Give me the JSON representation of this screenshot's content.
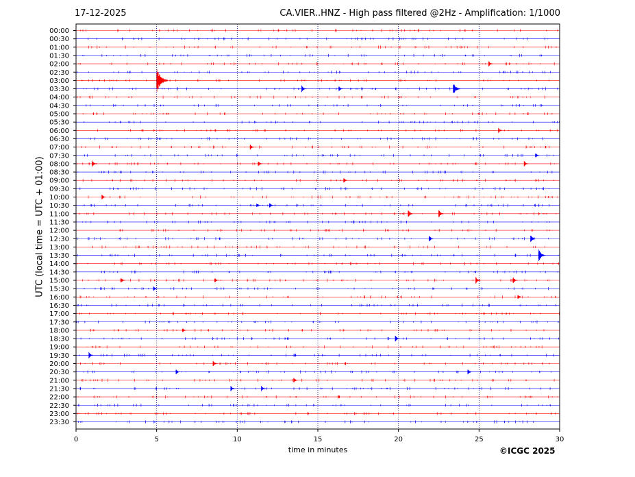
{
  "header": {
    "date": "17-12-2025",
    "title": "CA.VIER..HNZ - High pass filtered @2Hz - Amplification: 1/1000"
  },
  "footer": {
    "copyright": "©ICGC 2025"
  },
  "chart_data": {
    "type": "line",
    "title": "CA.VIER..HNZ - High pass filtered @2Hz - Amplification: 1/1000",
    "xlabel": "time in minutes",
    "ylabel": "UTC (local time = UTC + 01:00)",
    "xlim": [
      0,
      30
    ],
    "xticks": [
      0,
      5,
      10,
      15,
      20,
      25,
      30
    ],
    "grid": "vertical dotted at 5, 10, 15, 20, 25",
    "colors": {
      "even_rows": "#ff0000",
      "odd_rows": "#0000ff",
      "grid": "#000080"
    },
    "rows": [
      "00:00",
      "00:30",
      "01:00",
      "01:30",
      "02:00",
      "02:30",
      "03:00",
      "03:30",
      "04:00",
      "04:30",
      "05:00",
      "05:30",
      "06:00",
      "06:30",
      "07:00",
      "07:30",
      "08:00",
      "08:30",
      "09:00",
      "09:30",
      "10:00",
      "10:30",
      "11:00",
      "11:30",
      "12:00",
      "12:30",
      "13:00",
      "13:30",
      "14:00",
      "14:30",
      "15:00",
      "15:30",
      "16:00",
      "16:30",
      "17:00",
      "17:30",
      "18:00",
      "18:30",
      "19:00",
      "19:30",
      "20:00",
      "20:30",
      "21:00",
      "21:30",
      "22:00",
      "22:30",
      "23:00",
      "23:30"
    ],
    "events": [
      {
        "row": "02:00",
        "minute": 25.6,
        "amplitude": 0.2
      },
      {
        "row": "03:00",
        "minute": 5.0,
        "amplitude": 1.0
      },
      {
        "row": "03:30",
        "minute": 14.0,
        "amplitude": 0.25
      },
      {
        "row": "03:30",
        "minute": 16.3,
        "amplitude": 0.2
      },
      {
        "row": "03:30",
        "minute": 23.4,
        "amplitude": 0.5
      },
      {
        "row": "06:00",
        "minute": 26.2,
        "amplitude": 0.2
      },
      {
        "row": "07:00",
        "minute": 10.8,
        "amplitude": 0.2
      },
      {
        "row": "07:30",
        "minute": 28.5,
        "amplitude": 0.2
      },
      {
        "row": "08:00",
        "minute": 1.0,
        "amplitude": 0.25
      },
      {
        "row": "08:00",
        "minute": 11.3,
        "amplitude": 0.2
      },
      {
        "row": "08:00",
        "minute": 27.8,
        "amplitude": 0.2
      },
      {
        "row": "09:00",
        "minute": 16.6,
        "amplitude": 0.2
      },
      {
        "row": "10:00",
        "minute": 1.6,
        "amplitude": 0.2
      },
      {
        "row": "10:30",
        "minute": 11.2,
        "amplitude": 0.2
      },
      {
        "row": "10:30",
        "minute": 12.0,
        "amplitude": 0.2
      },
      {
        "row": "11:00",
        "minute": 20.6,
        "amplitude": 0.3
      },
      {
        "row": "11:00",
        "minute": 22.5,
        "amplitude": 0.3
      },
      {
        "row": "12:30",
        "minute": 21.9,
        "amplitude": 0.25
      },
      {
        "row": "12:30",
        "minute": 28.2,
        "amplitude": 0.3
      },
      {
        "row": "13:30",
        "minute": 28.7,
        "amplitude": 0.5
      },
      {
        "row": "15:00",
        "minute": 2.8,
        "amplitude": 0.2
      },
      {
        "row": "15:00",
        "minute": 8.6,
        "amplitude": 0.2
      },
      {
        "row": "15:00",
        "minute": 24.8,
        "amplitude": 0.25
      },
      {
        "row": "15:00",
        "minute": 27.1,
        "amplitude": 0.25
      },
      {
        "row": "15:30",
        "minute": 4.8,
        "amplitude": 0.2
      },
      {
        "row": "16:00",
        "minute": 27.4,
        "amplitude": 0.2
      },
      {
        "row": "18:00",
        "minute": 6.6,
        "amplitude": 0.2
      },
      {
        "row": "18:30",
        "minute": 19.8,
        "amplitude": 0.25
      },
      {
        "row": "19:30",
        "minute": 0.8,
        "amplitude": 0.25
      },
      {
        "row": "20:00",
        "minute": 8.5,
        "amplitude": 0.2
      },
      {
        "row": "20:30",
        "minute": 6.2,
        "amplitude": 0.2
      },
      {
        "row": "20:30",
        "minute": 24.3,
        "amplitude": 0.2
      },
      {
        "row": "21:00",
        "minute": 13.5,
        "amplitude": 0.2
      },
      {
        "row": "21:30",
        "minute": 9.6,
        "amplitude": 0.2
      },
      {
        "row": "21:30",
        "minute": 11.5,
        "amplitude": 0.2
      }
    ]
  }
}
